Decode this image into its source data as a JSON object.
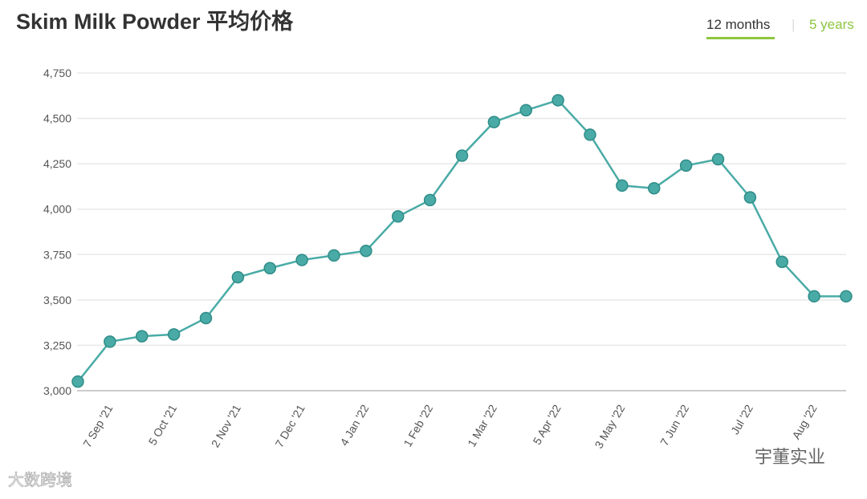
{
  "header": {
    "tabs": [
      "12 months",
      "5 years"
    ]
  },
  "watermarks": [
    "大数跨境",
    "宇董实业"
  ],
  "chart_data": {
    "type": "line",
    "title": "Skim Milk Powder 平均价格",
    "categories": [
      null,
      "7 Sep '21",
      null,
      "5 Oct '21",
      null,
      "2 Nov '21",
      null,
      "7 Dec '21",
      null,
      "4 Jan '22",
      null,
      "1 Feb '22",
      null,
      "1 Mar '22",
      null,
      "5 Apr '22",
      null,
      "3 May '22",
      null,
      "7 Jun '22",
      null,
      "Jul '22",
      null,
      "Aug '22",
      null
    ],
    "series": [
      {
        "color": "#4aaba6",
        "values": [
          3050,
          3270,
          3300,
          3310,
          3400,
          3625,
          3675,
          3720,
          3745,
          3770,
          3960,
          4050,
          4295,
          4480,
          4545,
          4600,
          4410,
          4130,
          4115,
          4240,
          4275,
          4065,
          3710,
          3520,
          3520
        ]
      }
    ],
    "ylim": [
      3000,
      4750
    ],
    "yticks": [
      {
        "value": 3000,
        "label": "3,000"
      },
      {
        "value": 3250,
        "label": "3,250"
      },
      {
        "value": 3500,
        "label": "3,500"
      },
      {
        "value": 3750,
        "label": "3,750"
      },
      {
        "value": 4000,
        "label": "4,000"
      },
      {
        "value": 4250,
        "label": "4,250"
      },
      {
        "value": 4500,
        "label": "4,500"
      },
      {
        "value": 4750,
        "label": "4,750"
      }
    ],
    "grid": true
  }
}
